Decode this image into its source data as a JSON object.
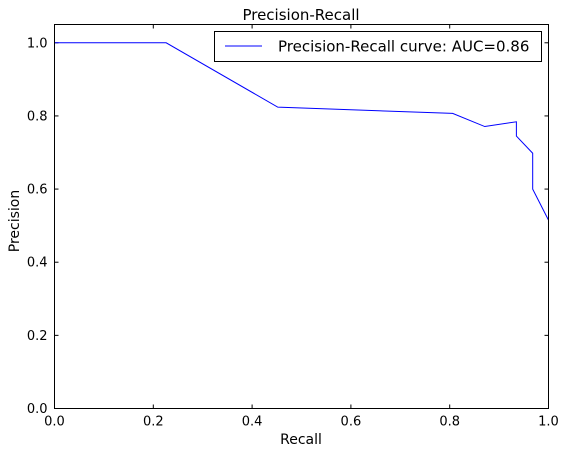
{
  "chart_data": {
    "type": "line",
    "title": "Precision-Recall",
    "xlabel": "Recall",
    "ylabel": "Precision",
    "xlim": [
      0.0,
      1.0
    ],
    "ylim": [
      0.0,
      1.05
    ],
    "x_ticks": [
      0.0,
      0.2,
      0.4,
      0.6,
      0.8,
      1.0
    ],
    "y_ticks": [
      0.0,
      0.2,
      0.4,
      0.6,
      0.8,
      1.0
    ],
    "x_tick_labels": [
      "0.0",
      "0.2",
      "0.4",
      "0.6",
      "0.8",
      "1.0"
    ],
    "y_tick_labels": [
      "0.0",
      "0.2",
      "0.4",
      "0.6",
      "0.8",
      "1.0"
    ],
    "grid": false,
    "legend_position": "top-right",
    "series": [
      {
        "name": "Precision-Recall curve: AUC=0.86",
        "color": "#0000ff",
        "x": [
          0.0,
          0.226,
          0.452,
          0.806,
          0.871,
          0.935,
          0.935,
          0.968,
          0.968,
          1.0
        ],
        "y": [
          1.0,
          1.0,
          0.824,
          0.807,
          0.771,
          0.784,
          0.745,
          0.698,
          0.6,
          0.515
        ]
      }
    ]
  }
}
